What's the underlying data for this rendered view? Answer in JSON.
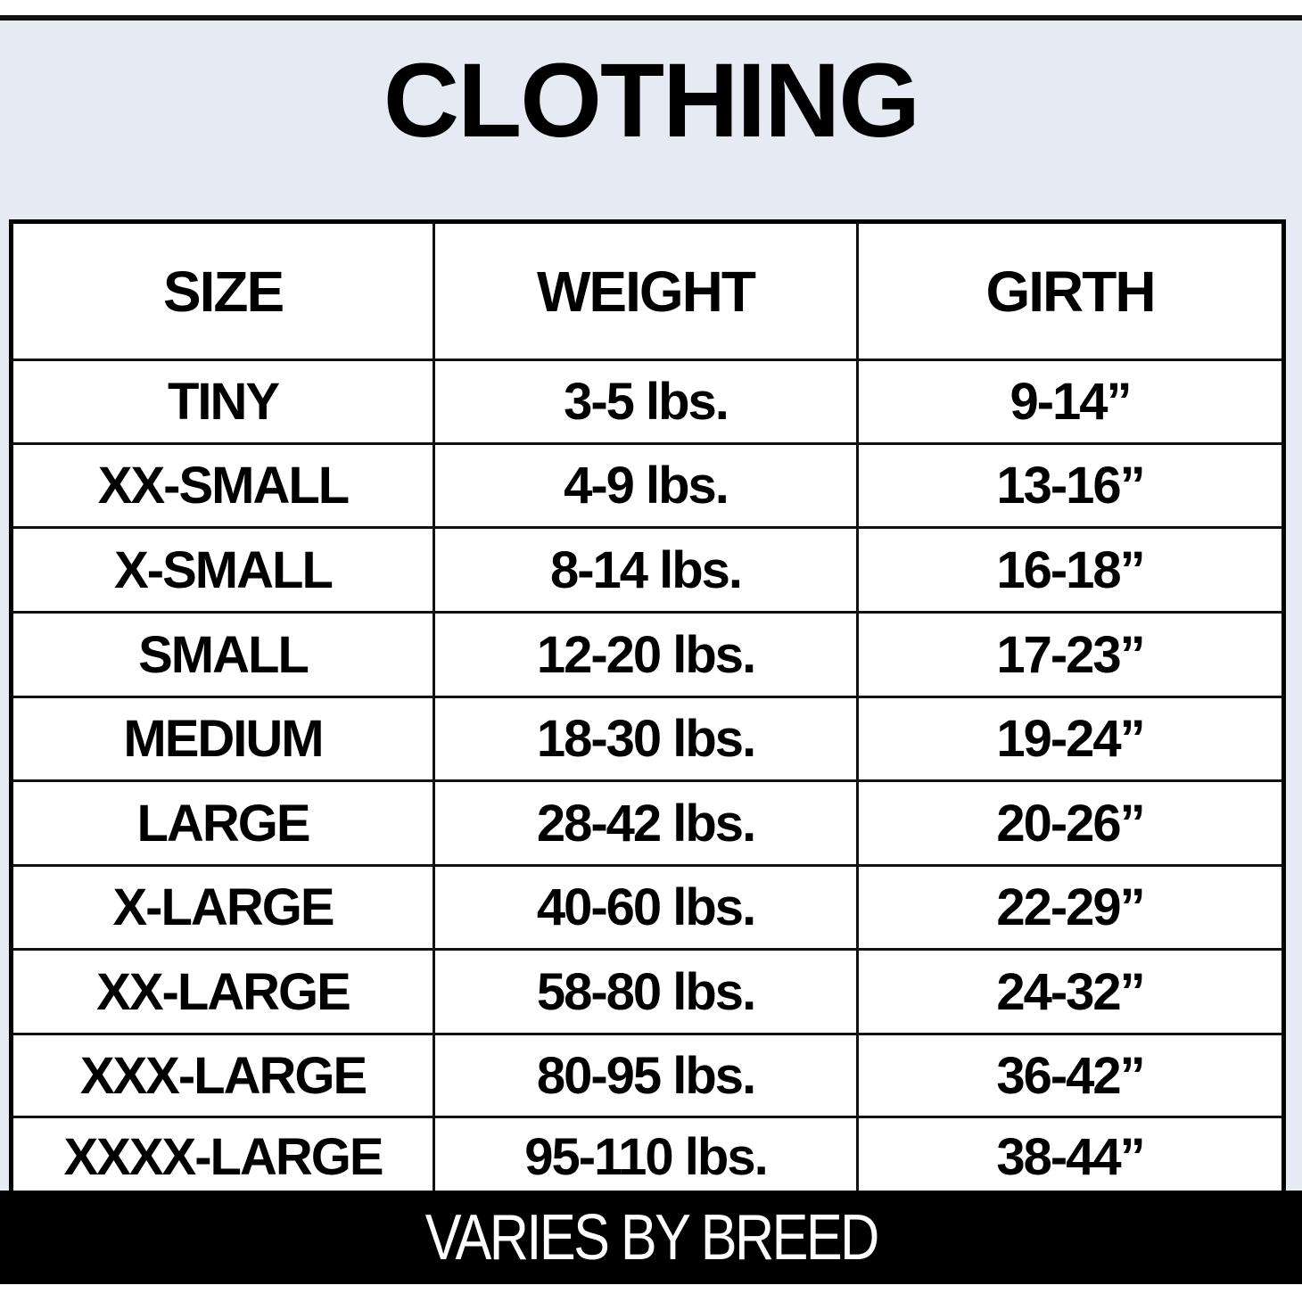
{
  "title": "CLOTHING",
  "table": {
    "headers": [
      "SIZE",
      "WEIGHT",
      "GIRTH"
    ],
    "rows": [
      [
        "TINY",
        "3-5 lbs.",
        "9-14”"
      ],
      [
        "XX-SMALL",
        "4-9 lbs.",
        "13-16”"
      ],
      [
        "X-SMALL",
        "8-14 lbs.",
        "16-18”"
      ],
      [
        "SMALL",
        "12-20 lbs.",
        "17-23”"
      ],
      [
        "MEDIUM",
        "18-30 lbs.",
        "19-24”"
      ],
      [
        "LARGE",
        "28-42 lbs.",
        "20-26”"
      ],
      [
        "X-LARGE",
        "40-60 lbs.",
        "22-29”"
      ],
      [
        "XX-LARGE",
        "58-80 lbs.",
        "24-32”"
      ],
      [
        "XXX-LARGE",
        "80-95 lbs.",
        "36-42”"
      ],
      [
        "XXXX-LARGE",
        "95-110 lbs.",
        "38-44”"
      ]
    ]
  },
  "footer": "VARIES BY BREED",
  "colors": {
    "panel_background": "#e6ebf3",
    "border": "#000000",
    "footer_background": "#000000",
    "footer_text": "#ffffff"
  }
}
